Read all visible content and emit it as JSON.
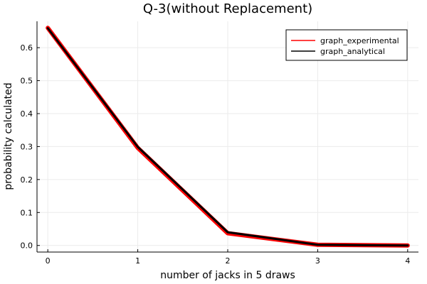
{
  "chart_data": {
    "type": "line",
    "title": "Q-3(without Replacement)",
    "xlabel": "number of jacks in 5 draws",
    "ylabel": "probability calculated",
    "x": [
      0,
      1,
      2,
      3,
      4
    ],
    "xticks": [
      "0",
      "1",
      "2",
      "3",
      "4"
    ],
    "yticks": [
      "0.0",
      "0.1",
      "0.2",
      "0.3",
      "0.4",
      "0.5",
      "0.6"
    ],
    "xlim": [
      -0.12,
      4.12
    ],
    "ylim": [
      -0.02,
      0.68
    ],
    "grid": true,
    "legend_position": "top-right",
    "series": [
      {
        "name": "graph_experimental",
        "color": "#ff0000",
        "values": [
          0.66,
          0.296,
          0.037,
          0.002,
          0.0
        ]
      },
      {
        "name": "graph_analytical",
        "color": "#000000",
        "values": [
          0.659,
          0.299,
          0.04,
          0.002,
          0.0
        ]
      }
    ]
  }
}
